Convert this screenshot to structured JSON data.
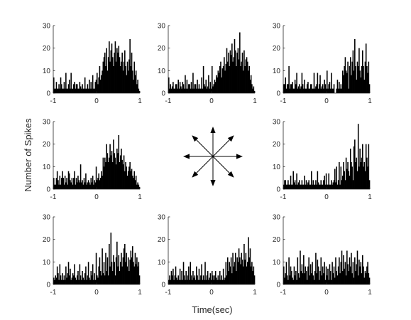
{
  "chart_data": {
    "type": "bar",
    "xlabel": "Time(sec)",
    "ylabel": "Number of Spikes",
    "xlim": [
      -1,
      1
    ],
    "ylim": [
      0,
      30
    ],
    "x_ticks": [
      -1,
      0,
      1
    ],
    "y_ticks": [
      0,
      10,
      20,
      30
    ],
    "bin_width": 0.02,
    "bar_color": "#000000",
    "grid": false,
    "legend": "none",
    "center_glyph": "eight-direction-arrows",
    "panels": [
      {
        "position": "top-left",
        "values": [
          7,
          2,
          2,
          5,
          2,
          2,
          4,
          2,
          7,
          4,
          2,
          2,
          5,
          2,
          9,
          2,
          2,
          4,
          6,
          2,
          9,
          2,
          2,
          4,
          5,
          2,
          4,
          4,
          2,
          2,
          5,
          3,
          2,
          4,
          2,
          2,
          7,
          2,
          2,
          4,
          2,
          6,
          2,
          5,
          2,
          8,
          2,
          2,
          5,
          6,
          9,
          4,
          7,
          12,
          6,
          8,
          10,
          14,
          16,
          18,
          12,
          20,
          10,
          16,
          23,
          14,
          19,
          22,
          16,
          12,
          18,
          23,
          14,
          20,
          18,
          21,
          16,
          12,
          14,
          18,
          10,
          14,
          19,
          12,
          8,
          14,
          10,
          15,
          24,
          12,
          18,
          10,
          6,
          14,
          8,
          10,
          4,
          6,
          2,
          1
        ]
      },
      {
        "position": "top-center",
        "values": [
          7,
          2,
          4,
          2,
          3,
          5,
          2,
          2,
          4,
          4,
          2,
          6,
          2,
          5,
          3,
          2,
          5,
          4,
          2,
          8,
          2,
          6,
          2,
          4,
          4,
          2,
          5,
          2,
          9,
          2,
          4,
          4,
          2,
          6,
          2,
          4,
          2,
          2,
          7,
          2,
          12,
          4,
          3,
          6,
          2,
          3,
          8,
          2,
          5,
          2,
          12,
          3,
          4,
          6,
          5,
          8,
          7,
          10,
          9,
          12,
          14,
          7,
          11,
          12,
          16,
          10,
          13,
          20,
          14,
          18,
          12,
          19,
          17,
          22,
          14,
          16,
          24,
          19,
          12,
          18,
          20,
          15,
          27,
          12,
          14,
          18,
          10,
          19,
          12,
          15,
          16,
          14,
          10,
          12,
          6,
          8,
          4,
          2,
          3,
          1
        ]
      },
      {
        "position": "top-right",
        "values": [
          4,
          4,
          7,
          2,
          4,
          4,
          12,
          2,
          4,
          4,
          5,
          2,
          2,
          6,
          4,
          9,
          2,
          3,
          4,
          2,
          3,
          9,
          4,
          2,
          6,
          2,
          2,
          4,
          5,
          2,
          2,
          4,
          4,
          2,
          2,
          9,
          2,
          3,
          4,
          9,
          2,
          4,
          8,
          2,
          3,
          4,
          2,
          6,
          4,
          2,
          10,
          2,
          4,
          5,
          2,
          9,
          2,
          2,
          4,
          0,
          0,
          2,
          6,
          2,
          5,
          2,
          4,
          2,
          10,
          8,
          12,
          16,
          10,
          9,
          14,
          2,
          12,
          16,
          8,
          14,
          19,
          10,
          24,
          12,
          6,
          14,
          12,
          20,
          10,
          7,
          12,
          19,
          12,
          6,
          14,
          22,
          12,
          9,
          14,
          4
        ]
      },
      {
        "position": "middle-left",
        "values": [
          5,
          2,
          2,
          5,
          8,
          4,
          2,
          6,
          2,
          5,
          8,
          5,
          2,
          6,
          3,
          5,
          2,
          8,
          7,
          4,
          3,
          5,
          2,
          5,
          8,
          2,
          5,
          3,
          6,
          4,
          3,
          11,
          3,
          4,
          2,
          5,
          3,
          7,
          2,
          3,
          4,
          3,
          2,
          5,
          3,
          6,
          2,
          4,
          3,
          10,
          4,
          5,
          7,
          4,
          5,
          8,
          6,
          14,
          10,
          14,
          12,
          20,
          16,
          12,
          14,
          20,
          15,
          17,
          12,
          22,
          16,
          14,
          11,
          18,
          16,
          24,
          12,
          15,
          18,
          13,
          11,
          15,
          8,
          12,
          10,
          6,
          8,
          10,
          12,
          8,
          9,
          6,
          5,
          8,
          4,
          6,
          2,
          3,
          2,
          1
        ]
      },
      {
        "position": "middle-right",
        "values": [
          2,
          4,
          4,
          2,
          2,
          4,
          2,
          2,
          6,
          2,
          2,
          8,
          3,
          4,
          2,
          7,
          2,
          3,
          4,
          2,
          2,
          4,
          2,
          2,
          6,
          2,
          4,
          2,
          3,
          4,
          2,
          2,
          8,
          2,
          4,
          2,
          2,
          4,
          2,
          8,
          3,
          2,
          2,
          4,
          2,
          2,
          4,
          6,
          2,
          7,
          2,
          2,
          7,
          2,
          2,
          4,
          2,
          3,
          4,
          9,
          3,
          10,
          2,
          4,
          12,
          2,
          10,
          4,
          6,
          12,
          8,
          4,
          14,
          9,
          12,
          8,
          6,
          18,
          12,
          10,
          4,
          19,
          22,
          12,
          14,
          8,
          29,
          10,
          18,
          12,
          14,
          20,
          10,
          12,
          8,
          20,
          14,
          10,
          20,
          4
        ]
      },
      {
        "position": "bottom-left",
        "values": [
          3,
          2,
          4,
          3,
          8,
          5,
          2,
          9,
          4,
          2,
          5,
          2,
          4,
          2,
          8,
          3,
          5,
          10,
          4,
          7,
          2,
          3,
          5,
          4,
          9,
          3,
          2,
          4,
          6,
          2,
          9,
          4,
          2,
          6,
          3,
          2,
          5,
          8,
          2,
          4,
          10,
          3,
          2,
          6,
          4,
          9,
          2,
          5,
          2,
          14,
          4,
          3,
          8,
          12,
          6,
          4,
          16,
          5,
          10,
          4,
          14,
          6,
          12,
          4,
          18,
          8,
          23,
          10,
          6,
          13,
          10,
          4,
          12,
          19,
          8,
          13,
          6,
          10,
          14,
          8,
          12,
          16,
          18,
          10,
          14,
          8,
          12,
          6,
          11,
          15,
          12,
          17,
          10,
          8,
          14,
          9,
          12,
          8,
          10,
          4
        ]
      },
      {
        "position": "bottom-center",
        "values": [
          2,
          4,
          2,
          6,
          4,
          7,
          2,
          4,
          8,
          3,
          2,
          4,
          2,
          7,
          2,
          6,
          2,
          10,
          4,
          2,
          6,
          2,
          4,
          8,
          2,
          10,
          4,
          2,
          6,
          3,
          4,
          2,
          8,
          4,
          2,
          7,
          2,
          4,
          9,
          2,
          4,
          2,
          10,
          2,
          4,
          6,
          2,
          3,
          5,
          2,
          6,
          4,
          2,
          4,
          6,
          3,
          2,
          4,
          2,
          6,
          2,
          4,
          2,
          7,
          2,
          3,
          10,
          4,
          12,
          6,
          10,
          8,
          12,
          5,
          14,
          8,
          10,
          14,
          6,
          12,
          10,
          16,
          12,
          9,
          14,
          11,
          8,
          18,
          11,
          14,
          8,
          10,
          21,
          12,
          16,
          8,
          10,
          6,
          8,
          4
        ]
      },
      {
        "position": "bottom-right",
        "values": [
          8,
          3,
          5,
          10,
          4,
          2,
          12,
          4,
          8,
          6,
          3,
          2,
          8,
          4,
          6,
          2,
          12,
          5,
          3,
          15,
          6,
          9,
          5,
          13,
          5,
          8,
          6,
          2,
          8,
          12,
          4,
          9,
          5,
          10,
          4,
          2,
          6,
          14,
          5,
          11,
          8,
          2,
          6,
          12,
          4,
          8,
          5,
          10,
          2,
          8,
          4,
          7,
          2,
          9,
          6,
          2,
          10,
          5,
          8,
          3,
          12,
          6,
          4,
          8,
          12,
          5,
          10,
          15,
          6,
          13,
          7,
          10,
          4,
          15,
          9,
          6,
          12,
          8,
          14,
          5,
          10,
          3,
          12,
          6,
          9,
          15,
          4,
          11,
          8,
          10,
          5,
          13,
          8,
          3,
          6,
          5,
          8,
          10,
          5,
          3
        ]
      }
    ]
  }
}
